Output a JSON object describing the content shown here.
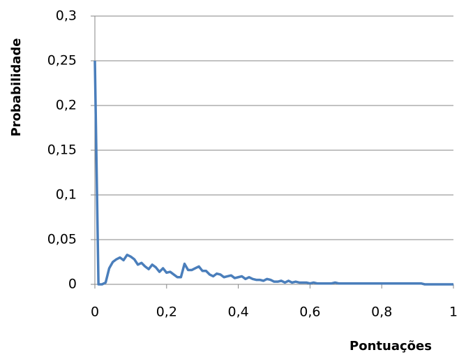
{
  "chart_data": {
    "type": "line",
    "xlabel": "Pontuações",
    "ylabel": "Probabilidade",
    "x": [
      0,
      0.01,
      0.02,
      0.03,
      0.04,
      0.05,
      0.06,
      0.07,
      0.08,
      0.09,
      0.1,
      0.11,
      0.12,
      0.13,
      0.14,
      0.15,
      0.16,
      0.17,
      0.18,
      0.19,
      0.2,
      0.21,
      0.22,
      0.23,
      0.24,
      0.25,
      0.26,
      0.27,
      0.28,
      0.29,
      0.3,
      0.31,
      0.32,
      0.33,
      0.34,
      0.35,
      0.36,
      0.37,
      0.38,
      0.39,
      0.4,
      0.41,
      0.42,
      0.43,
      0.44,
      0.45,
      0.46,
      0.47,
      0.48,
      0.49,
      0.5,
      0.51,
      0.52,
      0.53,
      0.54,
      0.55,
      0.56,
      0.57,
      0.58,
      0.59,
      0.6,
      0.61,
      0.62,
      0.63,
      0.64,
      0.65,
      0.66,
      0.67,
      0.68,
      0.69,
      0.7,
      0.71,
      0.72,
      0.73,
      0.74,
      0.75,
      0.76,
      0.77,
      0.78,
      0.79,
      0.8,
      0.81,
      0.82,
      0.83,
      0.84,
      0.85,
      0.86,
      0.87,
      0.88,
      0.89,
      0.9,
      0.91,
      0.92,
      0.93,
      0.94,
      0.95,
      0.96,
      0.97,
      0.98,
      0.99,
      1
    ],
    "values": [
      0.25,
      0,
      0,
      0.002,
      0.018,
      0.025,
      0.028,
      0.03,
      0.027,
      0.033,
      0.031,
      0.028,
      0.022,
      0.024,
      0.02,
      0.017,
      0.022,
      0.019,
      0.014,
      0.018,
      0.013,
      0.014,
      0.011,
      0.008,
      0.008,
      0.023,
      0.016,
      0.016,
      0.018,
      0.02,
      0.015,
      0.015,
      0.011,
      0.009,
      0.012,
      0.011,
      0.008,
      0.009,
      0.01,
      0.007,
      0.008,
      0.009,
      0.006,
      0.008,
      0.006,
      0.005,
      0.005,
      0.004,
      0.006,
      0.005,
      0.003,
      0.003,
      0.004,
      0.002,
      0.004,
      0.002,
      0.003,
      0.002,
      0.002,
      0.002,
      0.001,
      0.002,
      0.001,
      0.001,
      0.001,
      0.001,
      0.001,
      0.002,
      0.001,
      0.001,
      0.001,
      0.001,
      0.001,
      0.001,
      0.001,
      0.001,
      0.001,
      0.001,
      0.001,
      0.001,
      0.001,
      0.001,
      0.001,
      0.001,
      0.001,
      0.001,
      0.001,
      0.001,
      0.001,
      0.001,
      0.001,
      0.001,
      0,
      0,
      0,
      0,
      0,
      0,
      0,
      0,
      0
    ],
    "color": "#4a7ebb",
    "xlim": [
      0,
      1
    ],
    "xticks": [
      0,
      {
        "value": 0.2,
        "label": "0,2"
      },
      {
        "value": 0.4,
        "label": "0,4"
      },
      {
        "value": 0.6,
        "label": "0,6"
      },
      {
        "value": 0.8,
        "label": "0,8"
      },
      1
    ],
    "ylim": [
      0,
      0.3
    ],
    "yticks": [
      0,
      {
        "value": 0.05,
        "label": "0,05"
      },
      {
        "value": 0.1,
        "label": "0,1"
      },
      {
        "value": 0.15,
        "label": "0,15"
      },
      {
        "value": 0.2,
        "label": "0,2"
      },
      {
        "value": 0.25,
        "label": "0,25"
      },
      {
        "value": 0.3,
        "label": "0,3"
      }
    ],
    "grid": true
  }
}
